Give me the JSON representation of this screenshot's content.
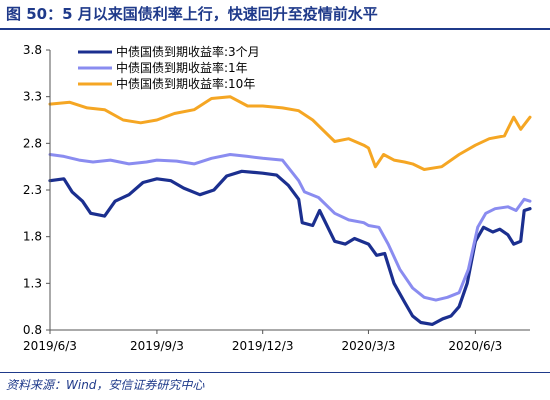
{
  "page": {
    "title": "图 50：5 月以来国债利率上行，快速回升至疫情前水平",
    "source": "资料来源：Wind，安信证券研究中心"
  },
  "chart_data": {
    "type": "line",
    "title": "",
    "xlabel": "",
    "ylabel": "",
    "x_ticks": [
      "2019/6/3",
      "2019/9/3",
      "2019/12/3",
      "2020/3/3",
      "2020/6/3"
    ],
    "x_range": [
      "2019-06-03",
      "2020-07-20"
    ],
    "ylim": [
      0.8,
      3.8
    ],
    "y_ticks": [
      "0.8",
      "1.3",
      "1.8",
      "2.3",
      "2.8",
      "3.3",
      "3.8"
    ],
    "grid": false,
    "legend_position": "top-left",
    "series": [
      {
        "name": "中债国债到期收益率:3个月",
        "color": "#1b2f8f",
        "points": [
          [
            "2019-06-03",
            2.4
          ],
          [
            "2019-06-15",
            2.42
          ],
          [
            "2019-06-22",
            2.28
          ],
          [
            "2019-07-01",
            2.18
          ],
          [
            "2019-07-08",
            2.05
          ],
          [
            "2019-07-20",
            2.02
          ],
          [
            "2019-07-29",
            2.18
          ],
          [
            "2019-08-10",
            2.25
          ],
          [
            "2019-08-22",
            2.38
          ],
          [
            "2019-09-03",
            2.42
          ],
          [
            "2019-09-15",
            2.4
          ],
          [
            "2019-09-26",
            2.32
          ],
          [
            "2019-10-10",
            2.25
          ],
          [
            "2019-10-22",
            2.3
          ],
          [
            "2019-11-02",
            2.45
          ],
          [
            "2019-11-15",
            2.5
          ],
          [
            "2019-12-03",
            2.48
          ],
          [
            "2019-12-15",
            2.46
          ],
          [
            "2019-12-25",
            2.35
          ],
          [
            "2020-01-03",
            2.2
          ],
          [
            "2020-01-06",
            1.95
          ],
          [
            "2020-01-15",
            1.92
          ],
          [
            "2020-01-21",
            2.08
          ],
          [
            "2020-02-03",
            1.75
          ],
          [
            "2020-02-12",
            1.72
          ],
          [
            "2020-02-20",
            1.78
          ],
          [
            "2020-03-03",
            1.72
          ],
          [
            "2020-03-10",
            1.6
          ],
          [
            "2020-03-17",
            1.62
          ],
          [
            "2020-03-25",
            1.3
          ],
          [
            "2020-04-03",
            1.1
          ],
          [
            "2020-04-10",
            0.95
          ],
          [
            "2020-04-17",
            0.88
          ],
          [
            "2020-04-27",
            0.86
          ],
          [
            "2020-05-06",
            0.92
          ],
          [
            "2020-05-13",
            0.95
          ],
          [
            "2020-05-20",
            1.05
          ],
          [
            "2020-05-27",
            1.3
          ],
          [
            "2020-06-03",
            1.75
          ],
          [
            "2020-06-10",
            1.9
          ],
          [
            "2020-06-18",
            1.85
          ],
          [
            "2020-06-24",
            1.88
          ],
          [
            "2020-07-01",
            1.82
          ],
          [
            "2020-07-06",
            1.72
          ],
          [
            "2020-07-12",
            1.75
          ],
          [
            "2020-07-15",
            2.08
          ],
          [
            "2020-07-20",
            2.1
          ]
        ]
      },
      {
        "name": "中债国债到期收益率:1年",
        "color": "#8a8cf0",
        "points": [
          [
            "2019-06-03",
            2.68
          ],
          [
            "2019-06-15",
            2.66
          ],
          [
            "2019-06-28",
            2.62
          ],
          [
            "2019-07-10",
            2.6
          ],
          [
            "2019-07-25",
            2.62
          ],
          [
            "2019-08-10",
            2.58
          ],
          [
            "2019-08-25",
            2.6
          ],
          [
            "2019-09-03",
            2.62
          ],
          [
            "2019-09-20",
            2.61
          ],
          [
            "2019-10-05",
            2.58
          ],
          [
            "2019-10-20",
            2.64
          ],
          [
            "2019-11-05",
            2.68
          ],
          [
            "2019-11-20",
            2.66
          ],
          [
            "2019-12-03",
            2.64
          ],
          [
            "2019-12-20",
            2.62
          ],
          [
            "2020-01-03",
            2.4
          ],
          [
            "2020-01-08",
            2.28
          ],
          [
            "2020-01-20",
            2.22
          ],
          [
            "2020-02-03",
            2.05
          ],
          [
            "2020-02-15",
            1.98
          ],
          [
            "2020-02-28",
            1.95
          ],
          [
            "2020-03-03",
            1.92
          ],
          [
            "2020-03-12",
            1.9
          ],
          [
            "2020-03-20",
            1.72
          ],
          [
            "2020-03-30",
            1.45
          ],
          [
            "2020-04-10",
            1.25
          ],
          [
            "2020-04-20",
            1.15
          ],
          [
            "2020-04-30",
            1.12
          ],
          [
            "2020-05-10",
            1.15
          ],
          [
            "2020-05-20",
            1.2
          ],
          [
            "2020-05-28",
            1.45
          ],
          [
            "2020-06-05",
            1.9
          ],
          [
            "2020-06-12",
            2.05
          ],
          [
            "2020-06-20",
            2.1
          ],
          [
            "2020-07-01",
            2.12
          ],
          [
            "2020-07-08",
            2.08
          ],
          [
            "2020-07-15",
            2.2
          ],
          [
            "2020-07-20",
            2.18
          ]
        ]
      },
      {
        "name": "中债国债到期收益率:10年",
        "color": "#f5a623",
        "points": [
          [
            "2019-06-03",
            3.22
          ],
          [
            "2019-06-20",
            3.24
          ],
          [
            "2019-07-05",
            3.18
          ],
          [
            "2019-07-20",
            3.16
          ],
          [
            "2019-08-05",
            3.05
          ],
          [
            "2019-08-20",
            3.02
          ],
          [
            "2019-09-03",
            3.05
          ],
          [
            "2019-09-18",
            3.12
          ],
          [
            "2019-10-05",
            3.16
          ],
          [
            "2019-10-20",
            3.28
          ],
          [
            "2019-11-05",
            3.3
          ],
          [
            "2019-11-20",
            3.2
          ],
          [
            "2019-12-03",
            3.2
          ],
          [
            "2019-12-20",
            3.18
          ],
          [
            "2020-01-03",
            3.15
          ],
          [
            "2020-01-15",
            3.05
          ],
          [
            "2020-02-03",
            2.82
          ],
          [
            "2020-02-15",
            2.85
          ],
          [
            "2020-02-28",
            2.78
          ],
          [
            "2020-03-03",
            2.75
          ],
          [
            "2020-03-09",
            2.55
          ],
          [
            "2020-03-16",
            2.68
          ],
          [
            "2020-03-25",
            2.62
          ],
          [
            "2020-04-03",
            2.6
          ],
          [
            "2020-04-10",
            2.58
          ],
          [
            "2020-04-20",
            2.52
          ],
          [
            "2020-05-05",
            2.55
          ],
          [
            "2020-05-20",
            2.68
          ],
          [
            "2020-06-03",
            2.78
          ],
          [
            "2020-06-15",
            2.85
          ],
          [
            "2020-06-28",
            2.88
          ],
          [
            "2020-07-06",
            3.08
          ],
          [
            "2020-07-12",
            2.95
          ],
          [
            "2020-07-20",
            3.08
          ]
        ]
      }
    ]
  }
}
